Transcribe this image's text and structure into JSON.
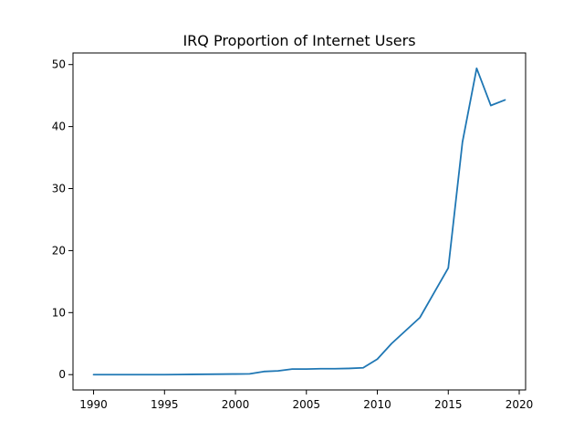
{
  "chart_data": {
    "type": "line",
    "title": "IRQ Proportion of Internet Users",
    "xlabel": "",
    "ylabel": "",
    "xlim": [
      1988.55,
      2020.45
    ],
    "ylim": [
      -2.47,
      51.87
    ],
    "xticks": [
      1990,
      1995,
      2000,
      2005,
      2010,
      2015,
      2020
    ],
    "yticks": [
      0,
      10,
      20,
      30,
      40,
      50
    ],
    "grid": false,
    "series": [
      {
        "color": "#1f77b4",
        "x": [
          1990,
          1991,
          1992,
          1993,
          1994,
          1995,
          1996,
          1997,
          1998,
          1999,
          2000,
          2001,
          2002,
          2003,
          2004,
          2005,
          2006,
          2007,
          2008,
          2009,
          2010,
          2011,
          2012,
          2013,
          2014,
          2015,
          2016,
          2017,
          2018,
          2019
        ],
        "y": [
          0,
          0,
          0,
          0,
          0,
          0,
          0.02,
          0.04,
          0.06,
          0.08,
          0.1,
          0.12,
          0.5,
          0.6,
          0.9,
          0.9,
          0.95,
          0.95,
          1.0,
          1.1,
          2.5,
          5.0,
          7.1,
          9.2,
          13.2,
          17.2,
          37.5,
          49.4,
          43.4,
          44.3
        ]
      }
    ]
  }
}
